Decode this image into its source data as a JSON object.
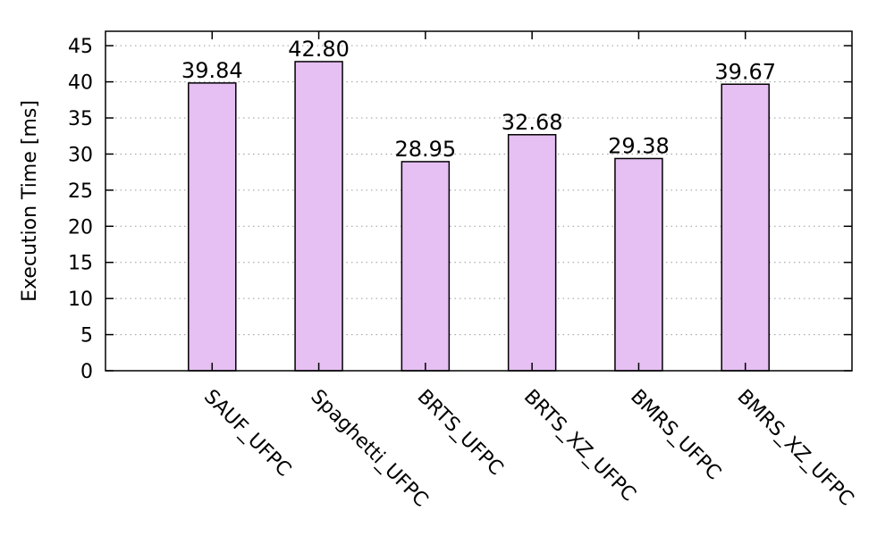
{
  "chart_data": {
    "type": "bar",
    "title": "",
    "xlabel": "",
    "ylabel": "Execution Time [ms]",
    "categories": [
      "SAUF_UFPC",
      "Spaghetti_UFPC",
      "BRTS_UFPC",
      "BRTS_XZ_UFPC",
      "BMRS_UFPC",
      "BMRS_XZ_UFPC"
    ],
    "values": [
      39.84,
      42.8,
      28.95,
      32.68,
      29.38,
      39.67
    ],
    "value_labels": [
      "39.84",
      "42.80",
      "28.95",
      "32.68",
      "29.38",
      "39.67"
    ],
    "ylim": [
      0,
      47
    ],
    "yticks": [
      0,
      5,
      10,
      15,
      20,
      25,
      30,
      35,
      40,
      45
    ],
    "grid": true,
    "bar_color": "#e6bff3",
    "bar_edge_color": "#000000"
  }
}
